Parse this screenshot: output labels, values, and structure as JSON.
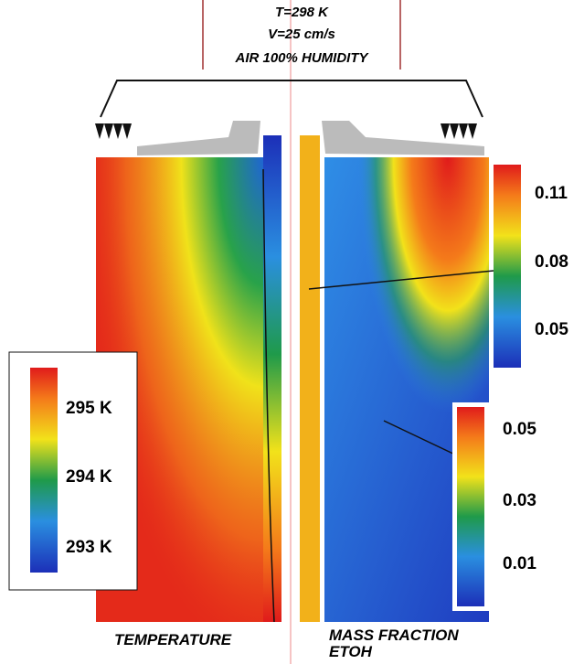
{
  "header": {
    "lines": [
      "T=298 K",
      "V=25 cm/s",
      "AIR 100% HUMIDITY"
    ]
  },
  "temperature_scale": {
    "labels": [
      "295 K",
      "294 K",
      "293 K"
    ]
  },
  "water_scale": {
    "labels": [
      "0.11",
      "0.08",
      "0.05"
    ]
  },
  "ethanol_scale": {
    "labels": [
      "0.05",
      "0.03",
      "0.01"
    ]
  },
  "captions": {
    "left": "TEMPERATURE",
    "right": [
      "MASS FRACTION",
      "ETOH"
    ]
  }
}
